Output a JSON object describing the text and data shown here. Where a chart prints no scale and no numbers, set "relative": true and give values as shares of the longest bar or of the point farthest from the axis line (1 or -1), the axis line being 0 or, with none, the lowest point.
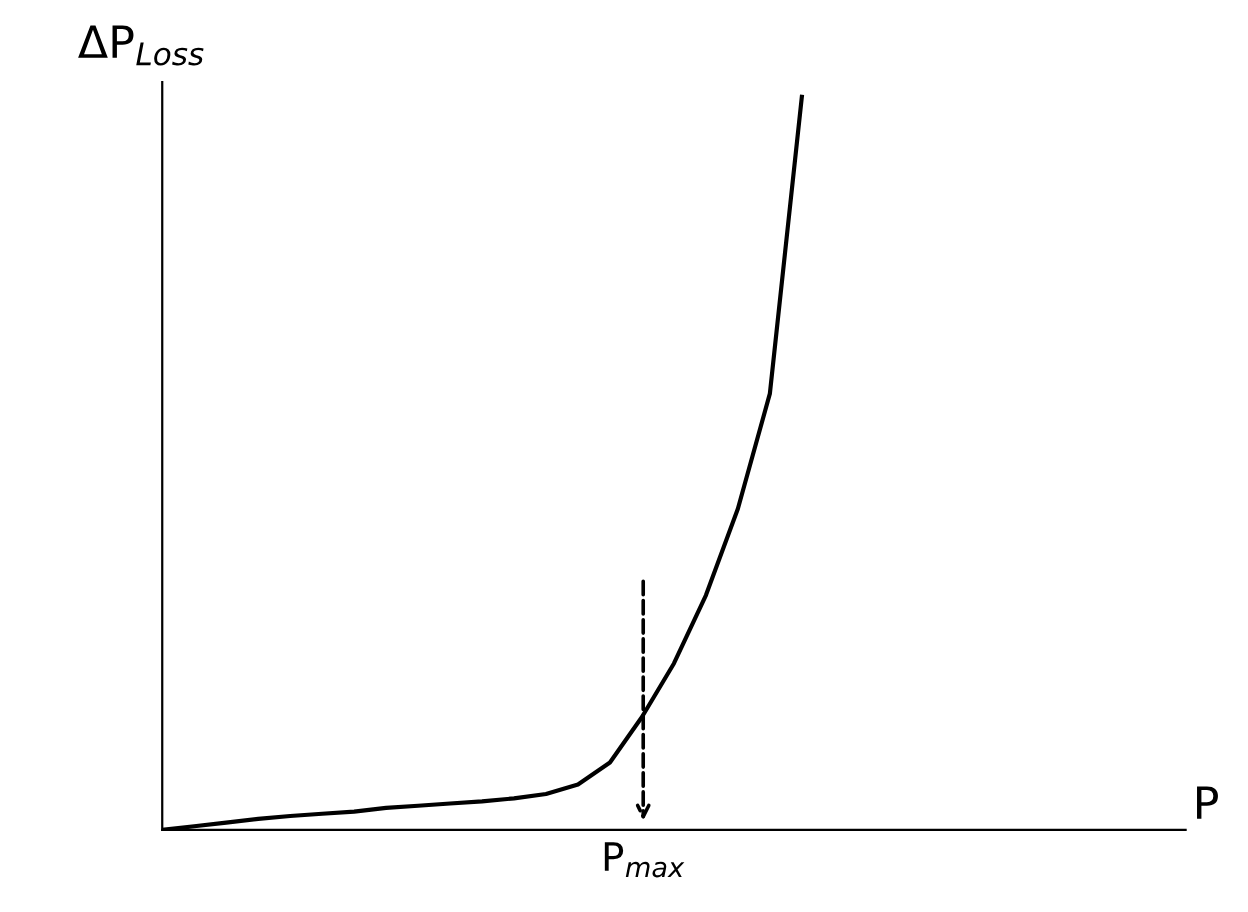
{
  "chart_data": {
    "type": "line",
    "relative": true,
    "xlabel": "P",
    "ylabel": "ΔP$_{Loss}$",
    "marker": "none",
    "line_style": "solid",
    "categories": [
      null,
      null,
      null,
      null,
      null,
      null,
      null,
      null,
      null,
      null,
      null,
      null,
      null,
      null,
      null,
      null,
      null,
      null,
      null,
      null,
      null,
      null,
      null,
      null,
      null,
      null,
      null,
      null,
      null,
      null,
      null,
      null,
      null
    ],
    "series": [
      {
        "color": "#000000",
        "values": [
          0,
          0.005,
          0.01,
          0.015,
          0.019,
          0.022,
          0.025,
          0.03,
          0.033,
          0.036,
          0.039,
          0.043,
          0.049,
          0.062,
          0.092,
          0.154,
          0.227,
          0.32,
          0.438,
          0.595,
          1,
          null,
          null,
          null,
          null,
          null,
          null,
          null,
          null,
          null,
          null,
          null,
          null
        ]
      }
    ],
    "annotations": [
      "P$_{max}$"
    ]
  }
}
